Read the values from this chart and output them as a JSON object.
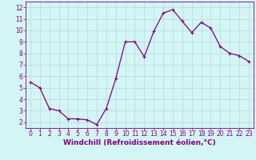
{
  "x": [
    0,
    1,
    2,
    3,
    4,
    5,
    6,
    7,
    8,
    9,
    10,
    11,
    12,
    13,
    14,
    15,
    16,
    17,
    18,
    19,
    20,
    21,
    22,
    23
  ],
  "y": [
    5.5,
    5.0,
    3.2,
    3.0,
    2.3,
    2.3,
    2.2,
    1.8,
    3.2,
    5.8,
    9.0,
    9.0,
    7.7,
    9.9,
    11.5,
    11.8,
    10.8,
    9.8,
    10.7,
    10.2,
    8.6,
    8.0,
    7.8,
    7.3
  ],
  "line_color": "#800080",
  "marker": "+",
  "marker_size": 3.5,
  "marker_linewidth": 0.8,
  "bg_color": "#d4f5f5",
  "grid_color": "#b8dede",
  "xlabel": "Windchill (Refroidissement éolien,°C)",
  "xlim": [
    -0.5,
    23.5
  ],
  "ylim": [
    1.5,
    12.5
  ],
  "yticks": [
    2,
    3,
    4,
    5,
    6,
    7,
    8,
    9,
    10,
    11,
    12
  ],
  "xticks": [
    0,
    1,
    2,
    3,
    4,
    5,
    6,
    7,
    8,
    9,
    10,
    11,
    12,
    13,
    14,
    15,
    16,
    17,
    18,
    19,
    20,
    21,
    22,
    23
  ],
  "axis_color": "#800080",
  "tick_fontsize": 5.5,
  "xlabel_fontsize": 6.5,
  "linewidth": 0.9
}
